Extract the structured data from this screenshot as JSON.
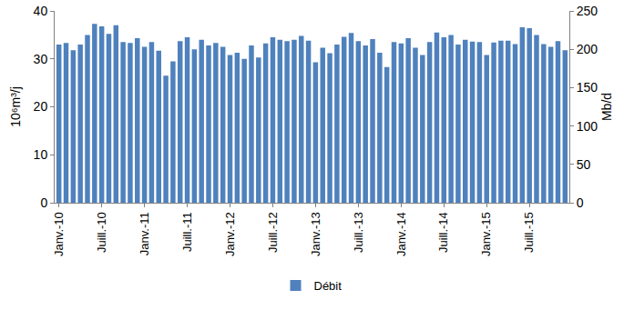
{
  "chart_data": {
    "type": "bar",
    "categories": [
      "Janv.-10",
      null,
      null,
      null,
      null,
      null,
      "Juill.-10",
      null,
      null,
      null,
      null,
      null,
      "Janv.-11",
      null,
      null,
      null,
      null,
      null,
      "Juill.-11",
      null,
      null,
      null,
      null,
      null,
      "Janv.-12",
      null,
      null,
      null,
      null,
      null,
      "Juill.-12",
      null,
      null,
      null,
      null,
      null,
      "Janv.-13",
      null,
      null,
      null,
      null,
      null,
      "Juill.-13",
      null,
      null,
      null,
      null,
      null,
      "Janv.-14",
      null,
      null,
      null,
      null,
      null,
      "Juill.-14",
      null,
      null,
      null,
      null,
      null,
      "Janv.-15",
      null,
      null,
      null,
      null,
      null,
      "Juill.-15",
      null,
      null,
      null,
      null,
      null
    ],
    "series": [
      {
        "name": "Débit",
        "color": "#4f81bd",
        "values": [
          33,
          33.3,
          31.8,
          33,
          35,
          37.3,
          36.8,
          35.2,
          37,
          33.5,
          33.3,
          34.3,
          32.5,
          33.5,
          31.7,
          26.5,
          29.5,
          33.7,
          34.5,
          32,
          34,
          32.8,
          33.3,
          32.5,
          30.8,
          31.3,
          30,
          32.8,
          30.3,
          33.2,
          34.5,
          34,
          33.7,
          34,
          34.8,
          33.8,
          29.3,
          32.3,
          31.2,
          33,
          34.6,
          35.4,
          33.7,
          32.8,
          34.1,
          31.3,
          28.3,
          33.5,
          33.2,
          34.3,
          32.3,
          30.8,
          33.5,
          35.5,
          34.5,
          35,
          33,
          34,
          33.6,
          33.5,
          30.8,
          33.4,
          33.8,
          33.8,
          33.1,
          36.6,
          36.4,
          35,
          33.1,
          32.5,
          33.7,
          31.8
        ]
      }
    ],
    "y_label": "10⁶m³/j",
    "y2_label": "Mb/d",
    "ylim": [
      0,
      40
    ],
    "yticks": [
      0,
      10,
      20,
      30,
      40
    ],
    "y2lim": [
      0,
      250
    ],
    "y2ticks": [
      0,
      50,
      100,
      150,
      200,
      250
    ],
    "grid": false,
    "legend": "bottom"
  }
}
